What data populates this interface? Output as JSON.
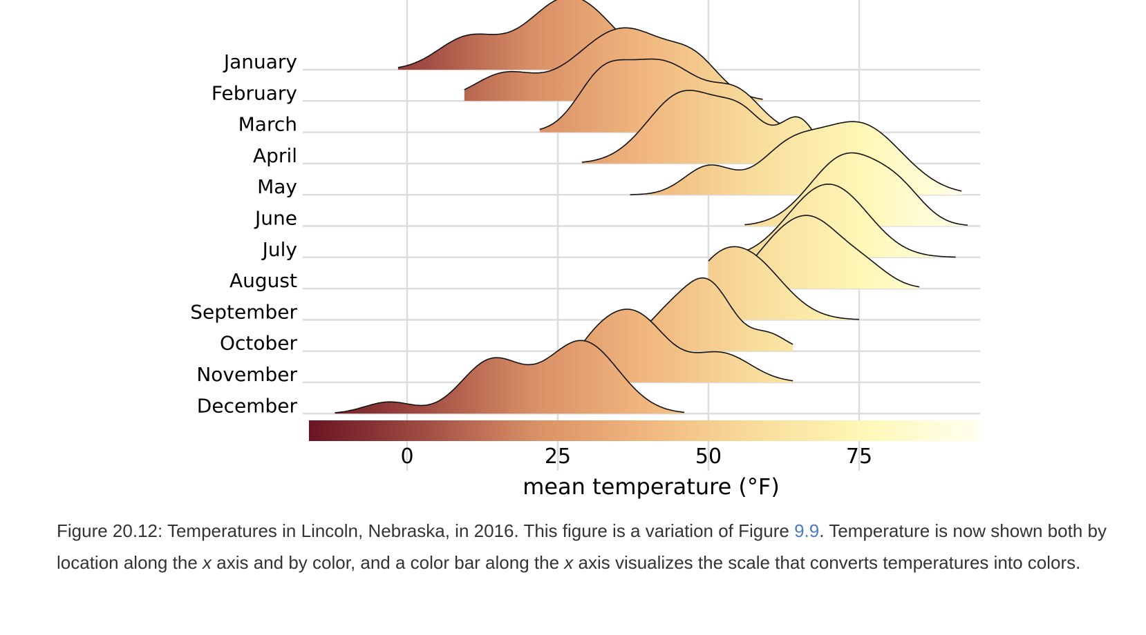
{
  "chart_data": {
    "type": "ridgeline",
    "xlabel": "mean temperature (°F)",
    "xticks": [
      0,
      25,
      50,
      75
    ],
    "xlim": [
      -17,
      95
    ],
    "colorbar": {
      "min": -17,
      "max": 95,
      "stops": [
        "#6b1322",
        "#a04a42",
        "#d98f66",
        "#f0b67e",
        "#f8dd9c",
        "#fff8b8",
        "#fffff0"
      ]
    },
    "series": [
      {
        "name": "January",
        "range": [
          -1.5,
          49
        ],
        "peaks": [
          [
            10,
            0.42,
            5
          ],
          [
            27,
            1.0,
            7
          ]
        ]
      },
      {
        "name": "February",
        "range": [
          9.5,
          59
        ],
        "peaks": [
          [
            16,
            0.35,
            5
          ],
          [
            36,
            1.0,
            8
          ],
          [
            48,
            0.35,
            4
          ]
        ]
      },
      {
        "name": "March",
        "range": [
          22,
          62
        ],
        "peaks": [
          [
            32,
            0.55,
            4
          ],
          [
            42,
            1.0,
            7
          ],
          [
            55,
            0.45,
            4
          ]
        ]
      },
      {
        "name": "April",
        "range": [
          29,
          70
        ],
        "peaks": [
          [
            46,
            1.0,
            6
          ],
          [
            56,
            0.55,
            4
          ],
          [
            65,
            0.6,
            3
          ]
        ]
      },
      {
        "name": "May",
        "range": [
          37,
          92
        ],
        "peaks": [
          [
            50,
            0.4,
            4
          ],
          [
            63,
            0.55,
            5
          ],
          [
            75,
            1.0,
            7
          ]
        ]
      },
      {
        "name": "June",
        "range": [
          56,
          93
        ],
        "peaks": [
          [
            73,
            1.0,
            6
          ],
          [
            82,
            0.35,
            4
          ]
        ]
      },
      {
        "name": "July",
        "range": [
          53,
          91
        ],
        "peaks": [
          [
            71,
            1.0,
            6
          ],
          [
            65,
            0.25,
            5
          ]
        ]
      },
      {
        "name": "August",
        "range": [
          54,
          85
        ],
        "peaks": [
          [
            67,
            1.0,
            5
          ],
          [
            60,
            0.35,
            4
          ],
          [
            76,
            0.3,
            4
          ]
        ]
      },
      {
        "name": "September",
        "range": [
          50,
          75
        ],
        "peaks": [
          [
            56,
            1.0,
            6
          ],
          [
            50,
            0.3,
            4
          ]
        ]
      },
      {
        "name": "October",
        "range": [
          40,
          64
        ],
        "peaks": [
          [
            50,
            1.0,
            4
          ],
          [
            43,
            0.5,
            4
          ],
          [
            60,
            0.25,
            3
          ]
        ]
      },
      {
        "name": "November",
        "range": [
          26,
          64
        ],
        "peaks": [
          [
            38,
            1.0,
            5
          ],
          [
            31,
            0.45,
            4
          ],
          [
            52,
            0.45,
            5
          ]
        ]
      },
      {
        "name": "December",
        "range": [
          -12,
          46
        ],
        "peaks": [
          [
            -3,
            0.16,
            4
          ],
          [
            14,
            0.72,
            5
          ],
          [
            29,
            1.0,
            6
          ]
        ]
      }
    ]
  },
  "caption": {
    "prefix": "Figure 20.12: Temperatures in Lincoln, Nebraska, in 2016. This figure is a variation of Figure ",
    "link": "9.9",
    "part2": ". Temperature is now shown both by location along the ",
    "x1": "x",
    "part3": " axis and by color, and a color bar along the ",
    "x2": "x",
    "part4": " axis visualizes the scale that converts temperatures into colors."
  }
}
